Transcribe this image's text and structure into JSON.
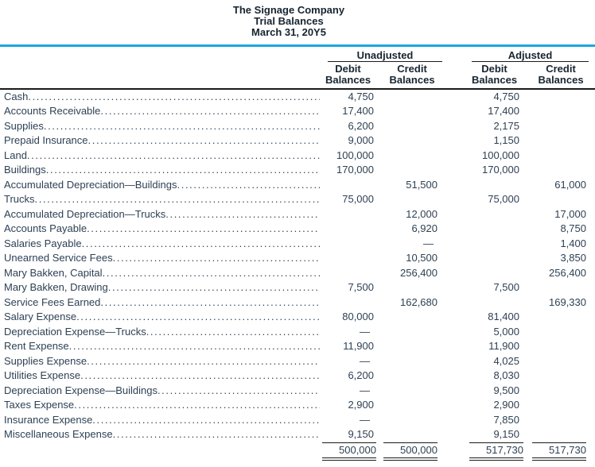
{
  "header": {
    "company": "The Signage Company",
    "report": "Trial Balances",
    "date": "March 31, 20Y5"
  },
  "columns": {
    "groups": [
      {
        "label": "Unadjusted"
      },
      {
        "label": "Adjusted"
      }
    ],
    "sub": [
      {
        "line1": "Debit",
        "line2": "Balances"
      },
      {
        "line1": "Credit",
        "line2": "Balances"
      },
      {
        "line1": "Debit",
        "line2": "Balances"
      },
      {
        "line1": "Credit",
        "line2": "Balances"
      }
    ]
  },
  "rows": [
    {
      "account": "Cash",
      "u_debit": "4,750",
      "u_credit": "",
      "a_debit": "4,750",
      "a_credit": ""
    },
    {
      "account": "Accounts Receivable",
      "u_debit": "17,400",
      "u_credit": "",
      "a_debit": "17,400",
      "a_credit": ""
    },
    {
      "account": "Supplies",
      "u_debit": "6,200",
      "u_credit": "",
      "a_debit": "2,175",
      "a_credit": ""
    },
    {
      "account": "Prepaid Insurance",
      "u_debit": "9,000",
      "u_credit": "",
      "a_debit": "1,150",
      "a_credit": ""
    },
    {
      "account": "Land",
      "u_debit": "100,000",
      "u_credit": "",
      "a_debit": "100,000",
      "a_credit": ""
    },
    {
      "account": "Buildings",
      "u_debit": "170,000",
      "u_credit": "",
      "a_debit": "170,000",
      "a_credit": ""
    },
    {
      "account": "Accumulated Depreciation—Buildings",
      "u_debit": "",
      "u_credit": "51,500",
      "a_debit": "",
      "a_credit": "61,000"
    },
    {
      "account": "Trucks",
      "u_debit": "75,000",
      "u_credit": "",
      "a_debit": "75,000",
      "a_credit": ""
    },
    {
      "account": "Accumulated Depreciation—Trucks",
      "u_debit": "",
      "u_credit": "12,000",
      "a_debit": "",
      "a_credit": "17,000"
    },
    {
      "account": "Accounts Payable",
      "u_debit": "",
      "u_credit": "6,920",
      "a_debit": "",
      "a_credit": "8,750"
    },
    {
      "account": "Salaries Payable",
      "u_debit": "",
      "u_credit": "—",
      "a_debit": "",
      "a_credit": "1,400"
    },
    {
      "account": "Unearned Service Fees",
      "u_debit": "",
      "u_credit": "10,500",
      "a_debit": "",
      "a_credit": "3,850"
    },
    {
      "account": "Mary Bakken, Capital",
      "u_debit": "",
      "u_credit": "256,400",
      "a_debit": "",
      "a_credit": "256,400"
    },
    {
      "account": "Mary Bakken, Drawing",
      "u_debit": "7,500",
      "u_credit": "",
      "a_debit": "7,500",
      "a_credit": ""
    },
    {
      "account": "Service Fees Earned",
      "u_debit": "",
      "u_credit": "162,680",
      "a_debit": "",
      "a_credit": "169,330"
    },
    {
      "account": "Salary Expense",
      "u_debit": "80,000",
      "u_credit": "",
      "a_debit": "81,400",
      "a_credit": ""
    },
    {
      "account": "Depreciation Expense—Trucks",
      "u_debit": "—",
      "u_credit": "",
      "a_debit": "5,000",
      "a_credit": ""
    },
    {
      "account": "Rent Expense",
      "u_debit": "11,900",
      "u_credit": "",
      "a_debit": "11,900",
      "a_credit": ""
    },
    {
      "account": "Supplies Expense",
      "u_debit": "—",
      "u_credit": "",
      "a_debit": "4,025",
      "a_credit": ""
    },
    {
      "account": "Utilities Expense",
      "u_debit": "6,200",
      "u_credit": "",
      "a_debit": "8,030",
      "a_credit": ""
    },
    {
      "account": "Depreciation Expense—Buildings",
      "u_debit": "—",
      "u_credit": "",
      "a_debit": "9,500",
      "a_credit": ""
    },
    {
      "account": "Taxes Expense",
      "u_debit": "2,900",
      "u_credit": "",
      "a_debit": "2,900",
      "a_credit": ""
    },
    {
      "account": "Insurance Expense",
      "u_debit": "—",
      "u_credit": "",
      "a_debit": "7,850",
      "a_credit": ""
    },
    {
      "account": "Miscellaneous Expense",
      "u_debit": "9,150",
      "u_credit": "",
      "a_debit": "9,150",
      "a_credit": ""
    }
  ],
  "totals": {
    "u_debit": "500,000",
    "u_credit": "500,000",
    "a_debit": "517,730",
    "a_credit": "517,730"
  },
  "colors": {
    "accent_rule": "#1ca6e0",
    "heading_text": "#17242f",
    "body_text": "#2e4154",
    "table_rule": "#1a1a1a"
  }
}
